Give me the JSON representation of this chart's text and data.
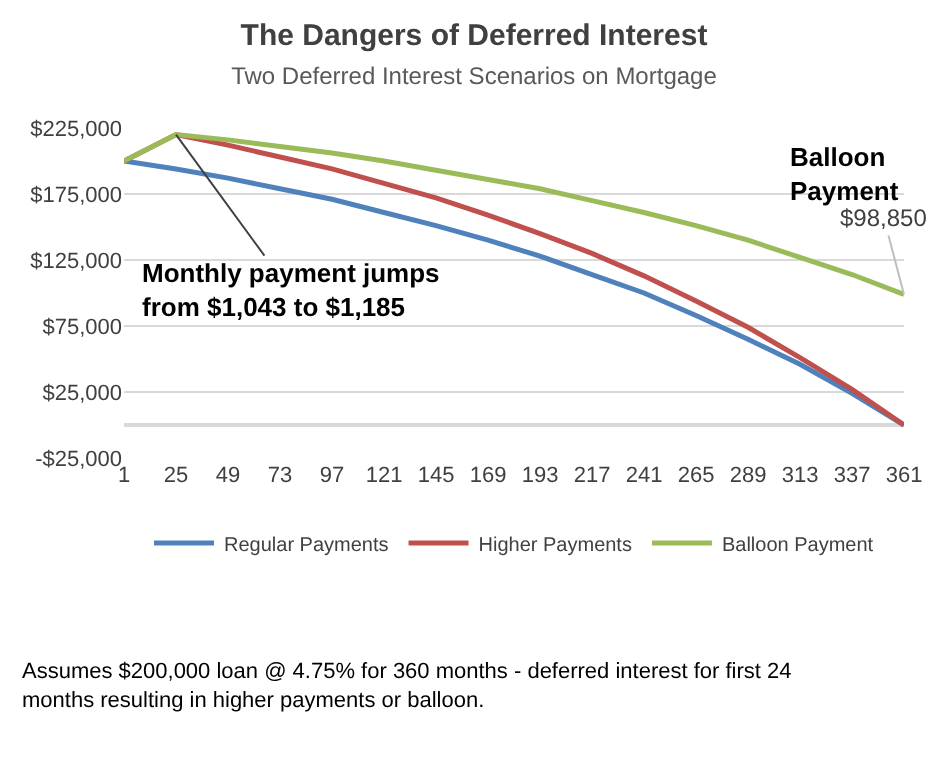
{
  "chart_data": {
    "type": "line",
    "title": "The Dangers of Deferred Interest",
    "subtitle": "Two Deferred Interest Scenarios on Mortgage",
    "x": [
      1,
      25,
      49,
      73,
      97,
      121,
      145,
      169,
      193,
      217,
      241,
      265,
      289,
      313,
      337,
      361
    ],
    "series": [
      {
        "name": "Regular Payments",
        "color": "#4f81bd",
        "values": [
          200000,
          194000,
          187000,
          179000,
          171000,
          161000,
          151000,
          140000,
          128000,
          114000,
          100000,
          83000,
          65000,
          46000,
          24000,
          0
        ]
      },
      {
        "name": "Higher Payments",
        "color": "#c0504d",
        "values": [
          200000,
          220000,
          212000,
          203000,
          194000,
          183000,
          172000,
          159000,
          145000,
          130000,
          113000,
          94000,
          74000,
          51000,
          27000,
          0
        ]
      },
      {
        "name": "Balloon Payment",
        "color": "#9bbb59",
        "values": [
          200000,
          220000,
          216000,
          211000,
          206000,
          200000,
          193000,
          186000,
          179000,
          170000,
          161000,
          151000,
          140000,
          127000,
          114000,
          98850
        ]
      }
    ],
    "xlim": [
      1,
      361
    ],
    "xticks": [
      1,
      25,
      49,
      73,
      97,
      121,
      145,
      169,
      193,
      217,
      241,
      265,
      289,
      313,
      337,
      361
    ],
    "ylim": [
      -25000,
      225000
    ],
    "yticks": [
      {
        "value": -25000,
        "label": "-$25,000"
      },
      {
        "value": 25000,
        "label": "$25,000"
      },
      {
        "value": 75000,
        "label": "$75,000"
      },
      {
        "value": 125000,
        "label": "$125,000"
      },
      {
        "value": 175000,
        "label": "$175,000"
      },
      {
        "value": 225000,
        "label": "$225,000"
      }
    ],
    "grid": "y",
    "legend": "bottom",
    "marker": "none",
    "line_style": "solid",
    "annotations": [
      {
        "text": "Monthly payment jumps from $1,043 to $1,185",
        "x": 25,
        "y": 220000
      },
      "Balloon Payment",
      {
        "text": "$98,850",
        "x": 361,
        "y": 98850
      },
      "Assumes $200,000 loan @ 4.75% for 360 months - deferred interest for first 24 months resulting in higher payments or balloon."
    ]
  }
}
